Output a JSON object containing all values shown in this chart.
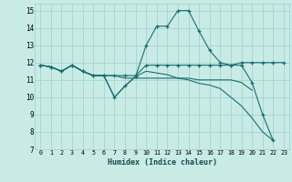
{
  "xlabel": "Humidex (Indice chaleur)",
  "ylabel": "",
  "xlim": [
    -0.5,
    23.5
  ],
  "ylim": [
    7,
    15.4
  ],
  "yticks": [
    7,
    8,
    9,
    10,
    11,
    12,
    13,
    14,
    15
  ],
  "xticks": [
    0,
    1,
    2,
    3,
    4,
    5,
    6,
    7,
    8,
    9,
    10,
    11,
    12,
    13,
    14,
    15,
    16,
    17,
    18,
    19,
    20,
    21,
    22,
    23
  ],
  "background_color": "#c8ebe6",
  "grid_color": "#9dcfca",
  "line_color": "#1a6e6e",
  "lines": [
    {
      "x": [
        0,
        1,
        2,
        3,
        4,
        5,
        6,
        7,
        8,
        9,
        10,
        11,
        12,
        13,
        14,
        15,
        16,
        17,
        18,
        19,
        20,
        21,
        22
      ],
      "y": [
        11.85,
        11.75,
        11.5,
        11.85,
        11.5,
        11.25,
        11.25,
        10.0,
        10.65,
        11.2,
        13.0,
        14.1,
        14.1,
        15.0,
        15.0,
        13.8,
        12.7,
        12.0,
        11.85,
        11.85,
        10.85,
        9.0,
        7.5
      ],
      "marker": true
    },
    {
      "x": [
        0,
        1,
        2,
        3,
        4,
        5,
        6,
        7,
        8,
        9,
        10,
        11,
        12,
        13,
        14,
        15,
        16,
        17,
        18,
        19,
        20,
        21,
        22,
        23
      ],
      "y": [
        11.85,
        11.75,
        11.5,
        11.85,
        11.5,
        11.25,
        11.25,
        11.25,
        11.25,
        11.25,
        11.85,
        11.85,
        11.85,
        11.85,
        11.85,
        11.85,
        11.85,
        11.85,
        11.85,
        12.0,
        12.0,
        12.0,
        12.0,
        12.0
      ],
      "marker": true
    },
    {
      "x": [
        0,
        1,
        2,
        3,
        4,
        5,
        6,
        7,
        8,
        9,
        10,
        11,
        12,
        13,
        14,
        15,
        16,
        17,
        18,
        19,
        20
      ],
      "y": [
        11.85,
        11.75,
        11.5,
        11.85,
        11.5,
        11.25,
        11.25,
        11.25,
        11.1,
        11.1,
        11.1,
        11.1,
        11.1,
        11.1,
        11.1,
        11.0,
        11.0,
        11.0,
        11.0,
        10.85,
        10.4
      ],
      "marker": false
    },
    {
      "x": [
        0,
        1,
        2,
        3,
        4,
        5,
        6,
        7,
        8,
        9,
        10,
        11,
        12,
        13,
        14,
        15,
        16,
        17,
        18,
        19,
        20,
        21,
        22
      ],
      "y": [
        11.85,
        11.75,
        11.5,
        11.85,
        11.5,
        11.25,
        11.25,
        10.0,
        10.65,
        11.2,
        11.5,
        11.4,
        11.3,
        11.1,
        11.0,
        10.8,
        10.7,
        10.5,
        10.0,
        9.5,
        8.8,
        8.0,
        7.5
      ],
      "marker": false
    }
  ]
}
